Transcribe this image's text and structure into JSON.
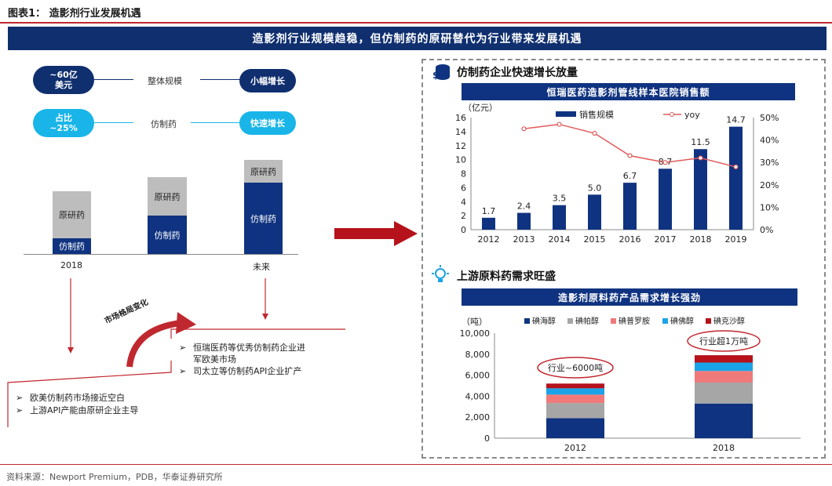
{
  "figure_title": "图表1：  造影剂行业发展机遇",
  "banner": "造影剂行业规模趋稳，但仿制药的原研替代为行业带来发展机遇",
  "left": {
    "row1": {
      "pill_left": "~60亿\n美元",
      "label": "整体规模",
      "pill_right": "小幅增长"
    },
    "row2": {
      "pill_left": "占比\n~25%",
      "label": "仿制药",
      "pill_right": "快速增长"
    },
    "bars": [
      {
        "category": "2018",
        "top": "原研药",
        "bottom": "仿制药"
      },
      {
        "category": "",
        "top": "原研药",
        "bottom": "仿制药"
      },
      {
        "category": "未来",
        "top": "原研药",
        "bottom": "仿制药"
      }
    ],
    "curve_label": "市场格局变化",
    "bullets_right": [
      "恒瑞医药等优秀仿制药企业进\n军欧美市场",
      "司太立等仿制药API企业扩产"
    ],
    "bullets_left": [
      "欧美仿制药市场接近空白",
      "上游API产能由原研企业主导"
    ]
  },
  "right": {
    "section1": "仿制药企业快速增长放量",
    "section2": "上游原料药需求旺盛"
  },
  "chart_data": [
    {
      "type": "bar",
      "title": "恒瑞医药造影剂管线样本医院销售额",
      "unit_label": "（亿元）",
      "categories": [
        "2012",
        "2013",
        "2014",
        "2015",
        "2016",
        "2017",
        "2018",
        "2019"
      ],
      "series": [
        {
          "name": "销售规模",
          "type": "bar",
          "axis": "left",
          "values": [
            1.7,
            2.4,
            3.5,
            5.0,
            6.7,
            8.7,
            11.5,
            14.7
          ],
          "labels": [
            "1.7",
            "2.4",
            "3.5",
            "5.0",
            "6.7",
            "8.7",
            "11.5",
            "14.7"
          ]
        },
        {
          "name": "yoy",
          "type": "line",
          "axis": "right",
          "values": [
            null,
            0.45,
            0.47,
            0.43,
            0.33,
            0.3,
            0.32,
            0.28
          ]
        }
      ],
      "ylim": [
        0,
        16
      ],
      "yticks": [
        "0",
        "2",
        "4",
        "6",
        "8",
        "10",
        "12",
        "14",
        "16"
      ],
      "y2lim": [
        0,
        0.5
      ],
      "y2ticks": [
        "0%",
        "10%",
        "20%",
        "30%",
        "40%",
        "50%"
      ],
      "legend_position": "top",
      "colors": {
        "bar": "#0f3380",
        "line": "#e05a5a"
      }
    },
    {
      "type": "bar",
      "stacked": true,
      "title": "造影剂原料药产品需求增长强劲",
      "unit_label": "（吨）",
      "categories": [
        "2012",
        "2018"
      ],
      "series": [
        {
          "name": "碘海醇",
          "values": [
            1900,
            3300
          ],
          "color": "#0f3380"
        },
        {
          "name": "碘帕醇",
          "values": [
            1450,
            2000
          ],
          "color": "#a6a6a6"
        },
        {
          "name": "碘普罗胺",
          "values": [
            800,
            1100
          ],
          "color": "#f07a7a"
        },
        {
          "name": "碘佛醇",
          "values": [
            600,
            800
          ],
          "color": "#1aa3e8"
        },
        {
          "name": "碘克沙醇",
          "values": [
            450,
            700
          ],
          "color": "#b5121b"
        }
      ],
      "ylim": [
        0,
        10000
      ],
      "yticks": [
        "0",
        "2,000",
        "4,000",
        "6,000",
        "8,000",
        "10,000"
      ],
      "annotations": [
        "行业~6000吨",
        "行业超1万吨"
      ],
      "legend_position": "top"
    }
  ],
  "source": "资料来源：Newport Premium，PDB，华泰证券研究所"
}
